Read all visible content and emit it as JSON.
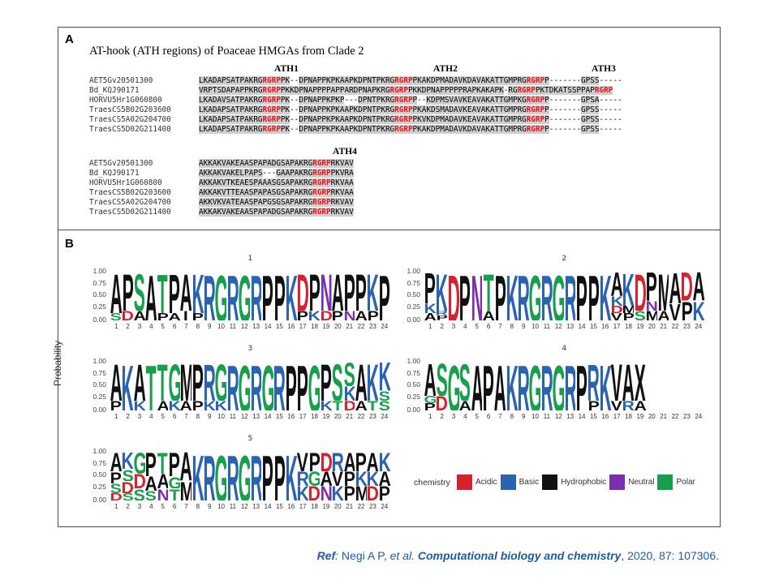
{
  "panel_a": {
    "letter": "A",
    "title": "AT-hook (ATH regions) of Poaceae HMGAs from Clade 2",
    "ath_labels": [
      "ATH1",
      "ATH2",
      "ATH3",
      "ATH4"
    ],
    "block1": [
      {
        "id": "AET5Gv20501300",
        "seq": "LKADAPSATPAKRGRGRPPK--DPNAPPKPKAAPKDPNTPKRGRGRPPKAKDPMADAVKDAVAKATTGMPRGRGRPP-------GPSS-----"
      },
      {
        "id": "Bd_KQJ90171",
        "seq": "VRPTSDAPAPPKRGRGRPPKKDPNAPPPPAPPARDPNAPKRGRGRPPKKDPNAPPPPPRAPKAKAPK-RGRGRPPKTDKATSSPPAPRGRP"
      },
      {
        "id": "HORVU5Hr1G060800",
        "seq": "LKADAVSATPAKRGRGRPPK--DPNAPPKPKP---DPNTPKRGRGRPP--KDPMSVAVKEAVAKATTGMPKGRGRPP-------GPSA-----"
      },
      {
        "id": "TraesCS5B02G203600",
        "seq": "LKADAPSATPAKRGRGRPPK--DPNAPPKPKAAPKDPNTPKRGRGRPPKAKDSMADAVKEAVAKATTGMPRGRGRPP-------GPSS-----"
      },
      {
        "id": "TraesCS5A02G204700",
        "seq": "LKADAPSATPAKRGRGRPPK--DPNAPPKPKAAPKDPNTPKRGRGRPPKVKDPMADAVKEAVAKATTGMPRGRGRPP-------GPSS-----"
      },
      {
        "id": "TraesCS5D02G211400",
        "seq": "LKADAPSATPAKRGRGRPPK--DPNAPPKPKAAPKDPNTPKRGRGRPPKAKDPMADAVKDAVAKATTGMPRGRGRPP-------GPSS-----"
      }
    ],
    "block2": [
      {
        "id": "AET5Gv20501300",
        "seq": "AKKAKVAKEAASPAPADGSAPAKRGRGRPRKVAV"
      },
      {
        "id": "Bd_KQJ90171",
        "seq": "AKKAKVAKELPAPS---GAAPAKRGRGRPPKVRA"
      },
      {
        "id": "HORVU5Hr1G060800",
        "seq": "AKKAKVTKEAESPAAASGSAPAKRGRGRPRKVAA"
      },
      {
        "id": "TraesCS5B02G203600",
        "seq": "AKKAKVTTEAASPAPASGSAPAKRGRGRPRKVAA"
      },
      {
        "id": "TraesCS5A02G204700",
        "seq": "AKKVKVATEAASPAPGSGSAPAKRGRGRPRKVAV"
      },
      {
        "id": "TraesCS5D02G211400",
        "seq": "AKKAKVAKEAASPAPADGSAPAKRGRGRPRKVAV"
      }
    ]
  },
  "panel_b": {
    "letter": "B",
    "y_axis_title": "Probability",
    "y_ticks": [
      "1.00",
      "0.75",
      "0.50",
      "0.25",
      "0.00"
    ],
    "positions": 24,
    "legend_title": "chemistry",
    "legend": [
      {
        "name": "Acidic",
        "color": "#d9202f"
      },
      {
        "name": "Basic",
        "color": "#2b63b0"
      },
      {
        "name": "Hydrophobic",
        "color": "#111111"
      },
      {
        "name": "Neutral",
        "color": "#7a2fb0"
      },
      {
        "name": "Polar",
        "color": "#16a04b"
      }
    ],
    "logos": [
      {
        "title": "1",
        "columns": [
          [
            [
              "A",
              0.85
            ],
            [
              "S",
              0.15
            ]
          ],
          [
            [
              "P",
              0.8
            ],
            [
              "D",
              0.2
            ]
          ],
          [
            [
              "S",
              0.8
            ],
            [
              "A",
              0.2
            ]
          ],
          [
            [
              "A",
              1.0
            ]
          ],
          [
            [
              "T",
              0.85
            ],
            [
              "P",
              0.15
            ]
          ],
          [
            [
              "P",
              0.85
            ],
            [
              "A",
              0.15
            ]
          ],
          [
            [
              "A",
              0.8
            ],
            [
              "I",
              0.2
            ]
          ],
          [
            [
              "K",
              0.85
            ],
            [
              "P",
              0.15
            ]
          ],
          [
            [
              "R",
              1.0
            ]
          ],
          [
            [
              "G",
              1.0
            ]
          ],
          [
            [
              "R",
              1.0
            ]
          ],
          [
            [
              "G",
              1.0
            ]
          ],
          [
            [
              "R",
              1.0
            ]
          ],
          [
            [
              "P",
              1.0
            ]
          ],
          [
            [
              "P",
              1.0
            ]
          ],
          [
            [
              "K",
              1.0
            ]
          ],
          [
            [
              "D",
              0.8
            ],
            [
              "P",
              0.2
            ]
          ],
          [
            [
              "P",
              0.8
            ],
            [
              "K",
              0.2
            ]
          ],
          [
            [
              "N",
              0.8
            ],
            [
              "D",
              0.2
            ]
          ],
          [
            [
              "A",
              0.8
            ],
            [
              "P",
              0.2
            ]
          ],
          [
            [
              "P",
              0.8
            ],
            [
              "N",
              0.2
            ]
          ],
          [
            [
              "P",
              0.8
            ],
            [
              "A",
              0.2
            ]
          ],
          [
            [
              "K",
              0.8
            ],
            [
              "P",
              0.2
            ]
          ],
          [
            [
              "P",
              1.0
            ]
          ]
        ]
      },
      {
        "title": "2",
        "columns": [
          [
            [
              "P",
              0.65
            ],
            [
              "K",
              0.2
            ],
            [
              "A",
              0.15
            ]
          ],
          [
            [
              "K",
              0.8
            ],
            [
              "P",
              0.1
            ],
            [
              "R",
              0.1
            ]
          ],
          [
            [
              "D",
              1.0
            ]
          ],
          [
            [
              "P",
              1.0
            ]
          ],
          [
            [
              "N",
              1.0
            ]
          ],
          [
            [
              "T",
              0.8
            ],
            [
              "A",
              0.2
            ]
          ],
          [
            [
              "P",
              1.0
            ]
          ],
          [
            [
              "K",
              1.0
            ]
          ],
          [
            [
              "R",
              1.0
            ]
          ],
          [
            [
              "G",
              1.0
            ]
          ],
          [
            [
              "R",
              1.0
            ]
          ],
          [
            [
              "G",
              1.0
            ]
          ],
          [
            [
              "R",
              1.0
            ]
          ],
          [
            [
              "P",
              1.0
            ]
          ],
          [
            [
              "P",
              1.0
            ]
          ],
          [
            [
              "K",
              1.0
            ]
          ],
          [
            [
              "A",
              0.5
            ],
            [
              "K",
              0.2
            ],
            [
              "V",
              0.15
            ],
            [
              "D",
              0.15
            ]
          ],
          [
            [
              "K",
              0.7
            ],
            [
              "P",
              0.15
            ],
            [
              "M",
              0.15
            ]
          ],
          [
            [
              "D",
              0.8
            ],
            [
              "S",
              0.2
            ]
          ],
          [
            [
              "P",
              0.6
            ],
            [
              "M",
              0.2
            ],
            [
              "N",
              0.2
            ]
          ],
          [
            [
              "M",
              0.8
            ],
            [
              "A",
              0.2
            ]
          ],
          [
            [
              "A",
              0.65
            ],
            [
              "V",
              0.35
            ]
          ],
          [
            [
              "D",
              0.6
            ],
            [
              "P",
              0.4
            ]
          ],
          [
            [
              "A",
              0.6
            ],
            [
              "K",
              0.4
            ]
          ]
        ]
      },
      {
        "title": "3",
        "columns": [
          [
            [
              "A",
              0.8
            ],
            [
              "P",
              0.2
            ]
          ],
          [
            [
              "K",
              1.0
            ]
          ],
          [
            [
              "A",
              0.8
            ],
            [
              "K",
              0.2
            ]
          ],
          [
            [
              "T",
              1.0
            ]
          ],
          [
            [
              "T",
              0.8
            ],
            [
              "A",
              0.2
            ]
          ],
          [
            [
              "G",
              0.8
            ],
            [
              "K",
              0.2
            ]
          ],
          [
            [
              "M",
              0.8
            ],
            [
              "A",
              0.2
            ]
          ],
          [
            [
              "P",
              0.8
            ],
            [
              "P",
              0.2
            ]
          ],
          [
            [
              "R",
              0.8
            ],
            [
              "K",
              0.2
            ]
          ],
          [
            [
              "G",
              0.8
            ],
            [
              "K",
              0.2
            ]
          ],
          [
            [
              "R",
              1.0
            ]
          ],
          [
            [
              "G",
              1.0
            ]
          ],
          [
            [
              "R",
              1.0
            ]
          ],
          [
            [
              "G",
              1.0
            ]
          ],
          [
            [
              "R",
              1.0
            ]
          ],
          [
            [
              "P",
              1.0
            ]
          ],
          [
            [
              "P",
              1.0
            ]
          ],
          [
            [
              "G",
              1.0
            ]
          ],
          [
            [
              "P",
              0.8
            ],
            [
              "K",
              0.2
            ]
          ],
          [
            [
              "S",
              0.8
            ],
            [
              "T",
              0.2
            ]
          ],
          [
            [
              "S",
              0.5
            ],
            [
              "K",
              0.3
            ],
            [
              "D",
              0.2
            ]
          ],
          [
            [
              "A",
              0.8
            ],
            [
              "A",
              0.2
            ]
          ],
          [
            [
              "K",
              0.8
            ],
            [
              "T",
              0.2
            ]
          ],
          [
            [
              "K",
              0.6
            ],
            [
              "S",
              0.2
            ],
            [
              "S",
              0.2
            ]
          ]
        ]
      },
      {
        "title": "4",
        "columns": [
          [
            [
              "A",
              0.7
            ],
            [
              "P",
              0.15
            ],
            [
              "G",
              0.15
            ]
          ],
          [
            [
              "S",
              0.7
            ],
            [
              "D",
              0.3
            ]
          ],
          [
            [
              "G",
              1.0
            ]
          ],
          [
            [
              "S",
              0.8
            ],
            [
              "A",
              0.2
            ]
          ],
          [
            [
              "A",
              1.0
            ]
          ],
          [
            [
              "P",
              1.0
            ]
          ],
          [
            [
              "A",
              1.0
            ]
          ],
          [
            [
              "K",
              1.0
            ]
          ],
          [
            [
              "R",
              1.0
            ]
          ],
          [
            [
              "G",
              1.0
            ]
          ],
          [
            [
              "R",
              1.0
            ]
          ],
          [
            [
              "G",
              1.0
            ]
          ],
          [
            [
              "R",
              1.0
            ]
          ],
          [
            [
              "P",
              1.0
            ]
          ],
          [
            [
              "R",
              0.8
            ],
            [
              "P",
              0.2
            ]
          ],
          [
            [
              "K",
              1.0
            ]
          ],
          [
            [
              "V",
              0.8
            ],
            [
              "V",
              0.2
            ]
          ],
          [
            [
              "A",
              0.8
            ],
            [
              "R",
              0.2
            ]
          ],
          [
            [
              "X",
              0.8
            ],
            [
              "A",
              0.2
            ]
          ]
        ]
      },
      {
        "title": "5",
        "columns": [
          [
            [
              "A",
              0.4
            ],
            [
              "P",
              0.25
            ],
            [
              "S",
              0.2
            ],
            [
              "D",
              0.15
            ]
          ],
          [
            [
              "K",
              0.35
            ],
            [
              "D",
              0.25
            ],
            [
              "S",
              0.25
            ],
            [
              "S",
              0.15
            ]
          ],
          [
            [
              "G",
              0.45
            ],
            [
              "D",
              0.3
            ],
            [
              "S",
              0.25
            ]
          ],
          [
            [
              "P",
              0.5
            ],
            [
              "A",
              0.3
            ],
            [
              "S",
              0.2
            ]
          ],
          [
            [
              "T",
              0.45
            ],
            [
              "A",
              0.3
            ],
            [
              "N",
              0.25
            ]
          ],
          [
            [
              "P",
              0.5
            ],
            [
              "T",
              0.25
            ],
            [
              "G",
              0.25
            ]
          ],
          [
            [
              "A",
              0.6
            ],
            [
              "M",
              0.4
            ]
          ],
          [
            [
              "K",
              1.0
            ]
          ],
          [
            [
              "R",
              1.0
            ]
          ],
          [
            [
              "G",
              1.0
            ]
          ],
          [
            [
              "R",
              1.0
            ]
          ],
          [
            [
              "G",
              1.0
            ]
          ],
          [
            [
              "R",
              1.0
            ]
          ],
          [
            [
              "P",
              1.0
            ]
          ],
          [
            [
              "P",
              1.0
            ]
          ],
          [
            [
              "K",
              1.0
            ]
          ],
          [
            [
              "V",
              0.4
            ],
            [
              "K",
              0.3
            ],
            [
              "R",
              0.3
            ]
          ],
          [
            [
              "P",
              0.4
            ],
            [
              "D",
              0.3
            ],
            [
              "G",
              0.3
            ]
          ],
          [
            [
              "D",
              0.4
            ],
            [
              "N",
              0.3
            ],
            [
              "A",
              0.3
            ]
          ],
          [
            [
              "R",
              0.4
            ],
            [
              "K",
              0.3
            ],
            [
              "V",
              0.3
            ]
          ],
          [
            [
              "A",
              0.4
            ],
            [
              "P",
              0.3
            ],
            [
              "P",
              0.3
            ]
          ],
          [
            [
              "P",
              0.4
            ],
            [
              "M",
              0.3
            ],
            [
              "K",
              0.3
            ]
          ],
          [
            [
              "A",
              0.4
            ],
            [
              "D",
              0.3
            ],
            [
              "K",
              0.3
            ]
          ],
          [
            [
              "K",
              0.4
            ],
            [
              "P",
              0.3
            ],
            [
              "A",
              0.3
            ]
          ]
        ]
      }
    ]
  },
  "reference": {
    "ref_label": "Ref",
    "authors": " Negi A P,  ",
    "etal": "et al.",
    "journal": "Computational biology and chemistry",
    "details": ", 2020, 87: 107306."
  }
}
